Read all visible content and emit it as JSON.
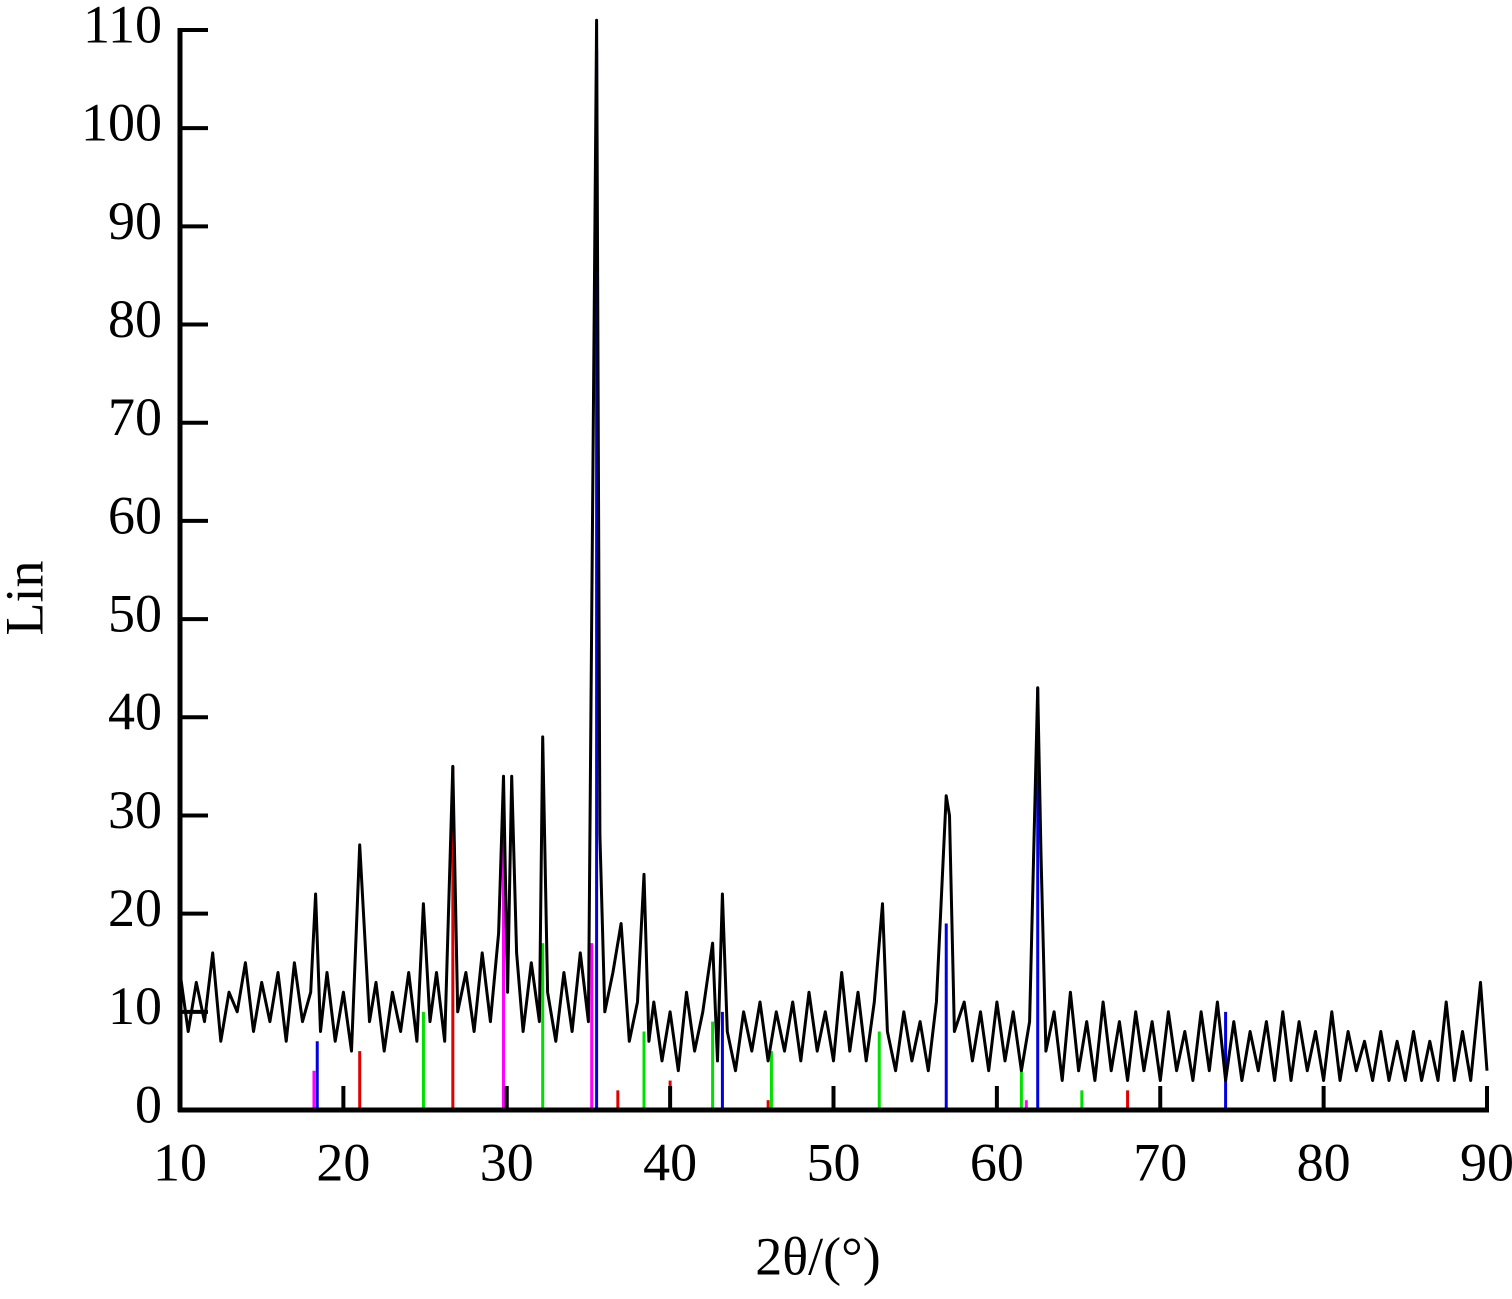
{
  "chart_data": {
    "type": "line",
    "xlabel": "2θ/(°)",
    "ylabel": "Lin",
    "xlim": [
      10,
      90
    ],
    "ylim": [
      0,
      110
    ],
    "xticks": [
      10,
      20,
      30,
      40,
      50,
      60,
      70,
      80,
      90
    ],
    "yticks": [
      0,
      10,
      20,
      30,
      40,
      50,
      60,
      70,
      80,
      90,
      100,
      110
    ],
    "series": [
      {
        "type": "line",
        "color": "#000000",
        "x": [
          10,
          10.5,
          11,
          11.5,
          12,
          12.5,
          13,
          13.5,
          14,
          14.5,
          15,
          15.5,
          16,
          16.5,
          17,
          17.5,
          18,
          18.3,
          18.6,
          19,
          19.5,
          20,
          20.5,
          21,
          21.3,
          21.6,
          22,
          22.5,
          23,
          23.5,
          24,
          24.5,
          24.9,
          25.3,
          25.7,
          26.2,
          26.7,
          27,
          27.5,
          28,
          28.5,
          29,
          29.5,
          29.8,
          30.05,
          30.3,
          30.6,
          31,
          31.5,
          32,
          32.2,
          32.5,
          33,
          33.5,
          34,
          34.5,
          35,
          35.5,
          35.7,
          36,
          36.5,
          37,
          37.5,
          38,
          38.4,
          38.7,
          39,
          39.5,
          40,
          40.5,
          41,
          41.5,
          42,
          42.6,
          42.9,
          43.2,
          43.5,
          44,
          44.5,
          45,
          45.5,
          46,
          46.5,
          47,
          47.5,
          48,
          48.5,
          49,
          49.5,
          50,
          50.5,
          51,
          51.5,
          52,
          52.5,
          53,
          53.3,
          53.8,
          54.3,
          54.8,
          55.3,
          55.8,
          56.3,
          56.9,
          57.1,
          57.4,
          58,
          58.5,
          59,
          59.5,
          60,
          60.5,
          61,
          61.5,
          62,
          62.5,
          62.7,
          63,
          63.5,
          64,
          64.5,
          65,
          65.5,
          66,
          66.5,
          67,
          67.5,
          68,
          68.5,
          69,
          69.5,
          70,
          70.5,
          71,
          71.5,
          72,
          72.5,
          73,
          73.5,
          74,
          74.5,
          75,
          75.5,
          76,
          76.5,
          77,
          77.5,
          78,
          78.5,
          79,
          79.5,
          80,
          80.5,
          81,
          81.5,
          82,
          82.5,
          83,
          83.5,
          84,
          84.5,
          85,
          85.5,
          86,
          86.5,
          87,
          87.5,
          88,
          88.5,
          89,
          89.6,
          90
        ],
        "values": [
          14,
          8,
          13,
          9,
          16,
          7,
          12,
          10,
          15,
          8,
          13,
          9,
          14,
          7,
          15,
          9,
          12,
          22,
          8,
          14,
          7,
          12,
          6,
          27,
          18,
          9,
          13,
          6,
          12,
          8,
          14,
          7,
          21,
          9,
          14,
          7,
          35,
          10,
          14,
          8,
          16,
          9,
          18,
          34,
          12,
          34,
          16,
          8,
          15,
          9,
          38,
          12,
          7,
          14,
          8,
          16,
          9,
          111,
          28,
          10,
          14,
          19,
          7,
          11,
          24,
          7,
          11,
          5,
          10,
          4,
          12,
          6,
          10,
          17,
          5,
          22,
          8,
          4,
          10,
          6,
          11,
          5,
          10,
          6,
          11,
          5,
          12,
          6,
          10,
          5,
          14,
          6,
          12,
          5,
          11,
          21,
          8,
          4,
          10,
          5,
          9,
          4,
          11,
          32,
          30,
          8,
          11,
          5,
          10,
          4,
          11,
          5,
          10,
          4,
          9,
          43,
          26,
          6,
          10,
          3,
          12,
          4,
          9,
          3,
          11,
          4,
          9,
          3,
          10,
          4,
          9,
          3,
          10,
          4,
          8,
          3,
          10,
          4,
          11,
          3,
          9,
          3,
          8,
          4,
          9,
          3,
          10,
          3,
          9,
          4,
          8,
          3,
          10,
          3,
          8,
          4,
          7,
          3,
          8,
          3,
          7,
          3,
          8,
          3,
          7,
          3,
          11,
          3,
          8,
          3,
          13,
          4
        ]
      },
      {
        "type": "stem",
        "color": "#e00000",
        "x": [
          21.0,
          26.7,
          36.8,
          40.0,
          46.0,
          68.0
        ],
        "values": [
          6,
          35,
          2,
          3,
          1,
          2
        ]
      },
      {
        "type": "stem",
        "color": "#0000e0",
        "x": [
          18.4,
          35.5,
          43.2,
          56.9,
          62.5,
          74.0
        ],
        "values": [
          7,
          108,
          10,
          19,
          43,
          10
        ]
      },
      {
        "type": "stem",
        "color": "#00e000",
        "x": [
          24.9,
          32.2,
          38.4,
          42.6,
          46.2,
          52.8,
          61.5,
          65.2
        ],
        "values": [
          10,
          17,
          8,
          9,
          6,
          8,
          5,
          2
        ]
      },
      {
        "type": "stem",
        "color": "#ff00ff",
        "x": [
          18.2,
          29.8,
          35.2,
          61.8
        ],
        "values": [
          4,
          33,
          17,
          1
        ]
      }
    ]
  }
}
